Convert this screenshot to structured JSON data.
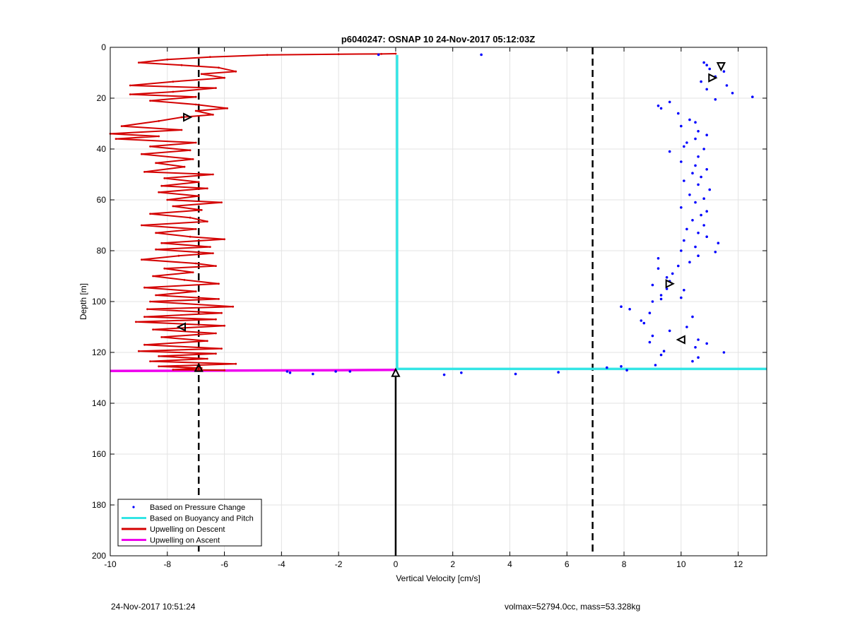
{
  "footer": {
    "left": "24-Nov-2017 10:51:24",
    "right": "volmax=52794.0cc, mass=53.328kg"
  },
  "chart_data": {
    "type": "line",
    "title": "p6040247: OSNAP 10 24-Nov-2017 05:12:03Z",
    "xlabel": "Vertical Velocity [cm/s]",
    "ylabel": "Depth [m]",
    "xlim": [
      -10,
      13
    ],
    "ylim": [
      0,
      200
    ],
    "y_reversed": true,
    "grid": true,
    "xticks": [
      -10,
      -8,
      -6,
      -4,
      -2,
      0,
      2,
      4,
      6,
      8,
      10,
      12
    ],
    "yticks": [
      0,
      20,
      40,
      60,
      80,
      100,
      120,
      140,
      160,
      180,
      200
    ],
    "legend_position": "bottom-left",
    "legend": [
      {
        "name": "Based on Pressure Change",
        "color": "#0000ff"
      },
      {
        "name": "Based on Buoyancy and Pitch",
        "color": "#33e5e5"
      },
      {
        "name": "Upwelling on Descent",
        "color": "#d40000"
      },
      {
        "name": "Upwelling on Ascent",
        "color": "#ee00ee"
      }
    ],
    "thresholds": [
      -6.9,
      6.9
    ],
    "series": [
      {
        "name": "Based on Pressure Change",
        "color": "#0000ff",
        "style": "dots",
        "points": [
          [
            -0.6,
            2.9
          ],
          [
            3.0,
            2.9
          ],
          [
            10.8,
            6.0
          ],
          [
            10.9,
            7.0
          ],
          [
            11.0,
            8.5
          ],
          [
            11.5,
            9.5
          ],
          [
            11.2,
            11.5
          ],
          [
            10.7,
            13.5
          ],
          [
            11.6,
            15.0
          ],
          [
            10.9,
            16.5
          ],
          [
            11.8,
            18.0
          ],
          [
            12.5,
            19.5
          ],
          [
            11.2,
            20.5
          ],
          [
            9.6,
            21.5
          ],
          [
            9.2,
            23.0
          ],
          [
            9.3,
            24.0
          ],
          [
            9.9,
            26.0
          ],
          [
            10.3,
            28.5
          ],
          [
            10.5,
            29.5
          ],
          [
            10.0,
            31.0
          ],
          [
            10.6,
            33.0
          ],
          [
            10.9,
            34.5
          ],
          [
            10.5,
            36.0
          ],
          [
            10.2,
            37.5
          ],
          [
            10.1,
            39.0
          ],
          [
            10.8,
            40.0
          ],
          [
            9.6,
            41.0
          ],
          [
            10.6,
            43.0
          ],
          [
            10.0,
            45.0
          ],
          [
            10.5,
            46.5
          ],
          [
            10.9,
            48.0
          ],
          [
            10.4,
            49.5
          ],
          [
            10.7,
            51.0
          ],
          [
            10.1,
            52.5
          ],
          [
            10.6,
            54.0
          ],
          [
            11.0,
            56.0
          ],
          [
            10.3,
            58.0
          ],
          [
            10.8,
            59.5
          ],
          [
            10.5,
            61.0
          ],
          [
            10.0,
            63.0
          ],
          [
            10.9,
            64.5
          ],
          [
            10.7,
            66.0
          ],
          [
            10.4,
            68.0
          ],
          [
            10.8,
            70.0
          ],
          [
            10.2,
            71.5
          ],
          [
            10.6,
            73.0
          ],
          [
            10.9,
            74.5
          ],
          [
            10.1,
            76.0
          ],
          [
            11.3,
            77.0
          ],
          [
            10.5,
            78.5
          ],
          [
            10.0,
            80.0
          ],
          [
            11.2,
            80.5
          ],
          [
            10.6,
            82.0
          ],
          [
            9.2,
            83.0
          ],
          [
            10.3,
            84.5
          ],
          [
            9.9,
            86.0
          ],
          [
            9.2,
            87.0
          ],
          [
            9.7,
            89.0
          ],
          [
            9.5,
            90.5
          ],
          [
            9.6,
            92.0
          ],
          [
            9.0,
            93.5
          ],
          [
            9.5,
            95.0
          ],
          [
            10.1,
            95.5
          ],
          [
            9.3,
            97.5
          ],
          [
            10.0,
            98.5
          ],
          [
            9.3,
            99.0
          ],
          [
            9.0,
            100.0
          ],
          [
            7.9,
            102.0
          ],
          [
            8.2,
            103.0
          ],
          [
            8.9,
            104.5
          ],
          [
            10.4,
            106.0
          ],
          [
            8.6,
            107.5
          ],
          [
            8.7,
            108.5
          ],
          [
            10.2,
            110.0
          ],
          [
            9.6,
            111.5
          ],
          [
            9.0,
            113.5
          ],
          [
            10.6,
            115.0
          ],
          [
            8.9,
            116.0
          ],
          [
            10.9,
            116.5
          ],
          [
            10.5,
            118.0
          ],
          [
            9.4,
            119.5
          ],
          [
            11.5,
            120.0
          ],
          [
            9.3,
            121.0
          ],
          [
            10.6,
            122.0
          ],
          [
            10.4,
            123.5
          ],
          [
            9.1,
            125.0
          ],
          [
            7.9,
            125.5
          ],
          [
            7.4,
            126.0
          ],
          [
            8.1,
            127.0
          ],
          [
            -3.8,
            127.5
          ],
          [
            -3.7,
            128.0
          ],
          [
            -2.9,
            128.5
          ],
          [
            -2.1,
            127.5
          ],
          [
            -1.6,
            127.5
          ],
          [
            1.7,
            128.8
          ],
          [
            2.3,
            128.0
          ],
          [
            4.2,
            128.5
          ],
          [
            5.7,
            127.8
          ]
        ]
      },
      {
        "name": "Based on Buoyancy and Pitch",
        "color": "#33e5e5",
        "style": "line",
        "points": [
          [
            0.05,
            3.0
          ],
          [
            0.05,
            126.5
          ],
          [
            13.0,
            126.5
          ]
        ]
      },
      {
        "name": "Upwelling on Descent",
        "color": "#d40000",
        "style": "line-dots",
        "points": [
          [
            0.0,
            2.5
          ],
          [
            -0.5,
            2.6
          ],
          [
            -2.0,
            2.7
          ],
          [
            -4.5,
            3.0
          ],
          [
            -6.5,
            3.8
          ],
          [
            -8.0,
            4.8
          ],
          [
            -9.0,
            6.0
          ],
          [
            -7.5,
            7.0
          ],
          [
            -6.2,
            8.0
          ],
          [
            -5.6,
            9.5
          ],
          [
            -6.8,
            10.5
          ],
          [
            -6.0,
            12.0
          ],
          [
            -7.8,
            13.5
          ],
          [
            -9.3,
            15.0
          ],
          [
            -6.3,
            16.0
          ],
          [
            -7.8,
            17.5
          ],
          [
            -9.3,
            18.5
          ],
          [
            -7.0,
            19.5
          ],
          [
            -8.6,
            21.0
          ],
          [
            -7.0,
            22.5
          ],
          [
            -5.9,
            24.0
          ],
          [
            -7.0,
            25.0
          ],
          [
            -6.4,
            26.5
          ],
          [
            -7.5,
            27.5
          ],
          [
            -8.3,
            29.0
          ],
          [
            -9.6,
            31.0
          ],
          [
            -7.5,
            32.5
          ],
          [
            -10.0,
            34.0
          ],
          [
            -8.3,
            35.0
          ],
          [
            -9.8,
            36.0
          ],
          [
            -7.0,
            37.5
          ],
          [
            -8.6,
            39.0
          ],
          [
            -7.2,
            40.5
          ],
          [
            -8.9,
            42.0
          ],
          [
            -7.1,
            44.0
          ],
          [
            -8.4,
            45.5
          ],
          [
            -7.4,
            47.0
          ],
          [
            -8.8,
            49.0
          ],
          [
            -6.4,
            50.0
          ],
          [
            -8.1,
            51.5
          ],
          [
            -6.9,
            53.0
          ],
          [
            -8.2,
            54.5
          ],
          [
            -6.6,
            55.5
          ],
          [
            -8.3,
            57.0
          ],
          [
            -6.9,
            58.5
          ],
          [
            -8.0,
            60.0
          ],
          [
            -6.1,
            61.0
          ],
          [
            -7.8,
            62.5
          ],
          [
            -6.8,
            64.0
          ],
          [
            -8.6,
            65.5
          ],
          [
            -7.2,
            67.0
          ],
          [
            -6.6,
            68.5
          ],
          [
            -8.9,
            70.0
          ],
          [
            -7.0,
            71.5
          ],
          [
            -8.4,
            73.0
          ],
          [
            -7.2,
            74.5
          ],
          [
            -6.0,
            75.5
          ],
          [
            -8.2,
            77.0
          ],
          [
            -6.5,
            78.5
          ],
          [
            -8.4,
            79.5
          ],
          [
            -6.4,
            81.0
          ],
          [
            -7.6,
            82.0
          ],
          [
            -8.9,
            83.5
          ],
          [
            -7.0,
            85.0
          ],
          [
            -6.3,
            86.0
          ],
          [
            -8.1,
            87.0
          ],
          [
            -7.1,
            88.5
          ],
          [
            -8.5,
            90.0
          ],
          [
            -7.4,
            91.5
          ],
          [
            -6.2,
            93.0
          ],
          [
            -8.8,
            94.5
          ],
          [
            -7.0,
            96.0
          ],
          [
            -8.4,
            97.5
          ],
          [
            -6.2,
            99.0
          ],
          [
            -8.6,
            100.0
          ],
          [
            -5.7,
            102.0
          ],
          [
            -8.7,
            103.0
          ],
          [
            -6.1,
            104.5
          ],
          [
            -8.8,
            106.0
          ],
          [
            -6.3,
            107.0
          ],
          [
            -9.1,
            108.0
          ],
          [
            -6.0,
            109.5
          ],
          [
            -8.5,
            111.0
          ],
          [
            -6.3,
            112.5
          ],
          [
            -8.2,
            114.0
          ],
          [
            -6.6,
            115.5
          ],
          [
            -8.8,
            117.0
          ],
          [
            -6.1,
            118.5
          ],
          [
            -9.0,
            119.5
          ],
          [
            -6.3,
            120.5
          ],
          [
            -8.3,
            121.5
          ],
          [
            -6.6,
            122.5
          ],
          [
            -8.6,
            123.5
          ],
          [
            -5.6,
            124.5
          ],
          [
            -8.3,
            125.5
          ],
          [
            -6.8,
            126.2
          ],
          [
            -7.8,
            126.8
          ],
          [
            -6.0,
            127.0
          ]
        ]
      },
      {
        "name": "Upwelling on Ascent",
        "color": "#ee00ee",
        "style": "line",
        "points": [
          [
            -10.0,
            127.3
          ],
          [
            -6.9,
            127.2
          ],
          [
            -2.0,
            127.0
          ],
          [
            0.0,
            126.9
          ]
        ]
      }
    ],
    "markers": [
      {
        "shape": "triangle-right",
        "x": -7.3,
        "y": 27.5
      },
      {
        "shape": "triangle-left",
        "x": -7.5,
        "y": 110.0
      },
      {
        "shape": "triangle-up",
        "x": -6.9,
        "y": 126.0
      },
      {
        "shape": "triangle-down",
        "x": 11.4,
        "y": 7.5
      },
      {
        "shape": "triangle-right",
        "x": 11.1,
        "y": 12.0
      },
      {
        "shape": "triangle-right",
        "x": 9.6,
        "y": 93.0
      },
      {
        "shape": "triangle-left",
        "x": 10.0,
        "y": 115.0
      },
      {
        "shape": "triangle-up",
        "x": 0.0,
        "y": 128.0
      }
    ],
    "vertical_arrow": {
      "x": 0,
      "from_y": 200,
      "to_y": 128
    }
  }
}
